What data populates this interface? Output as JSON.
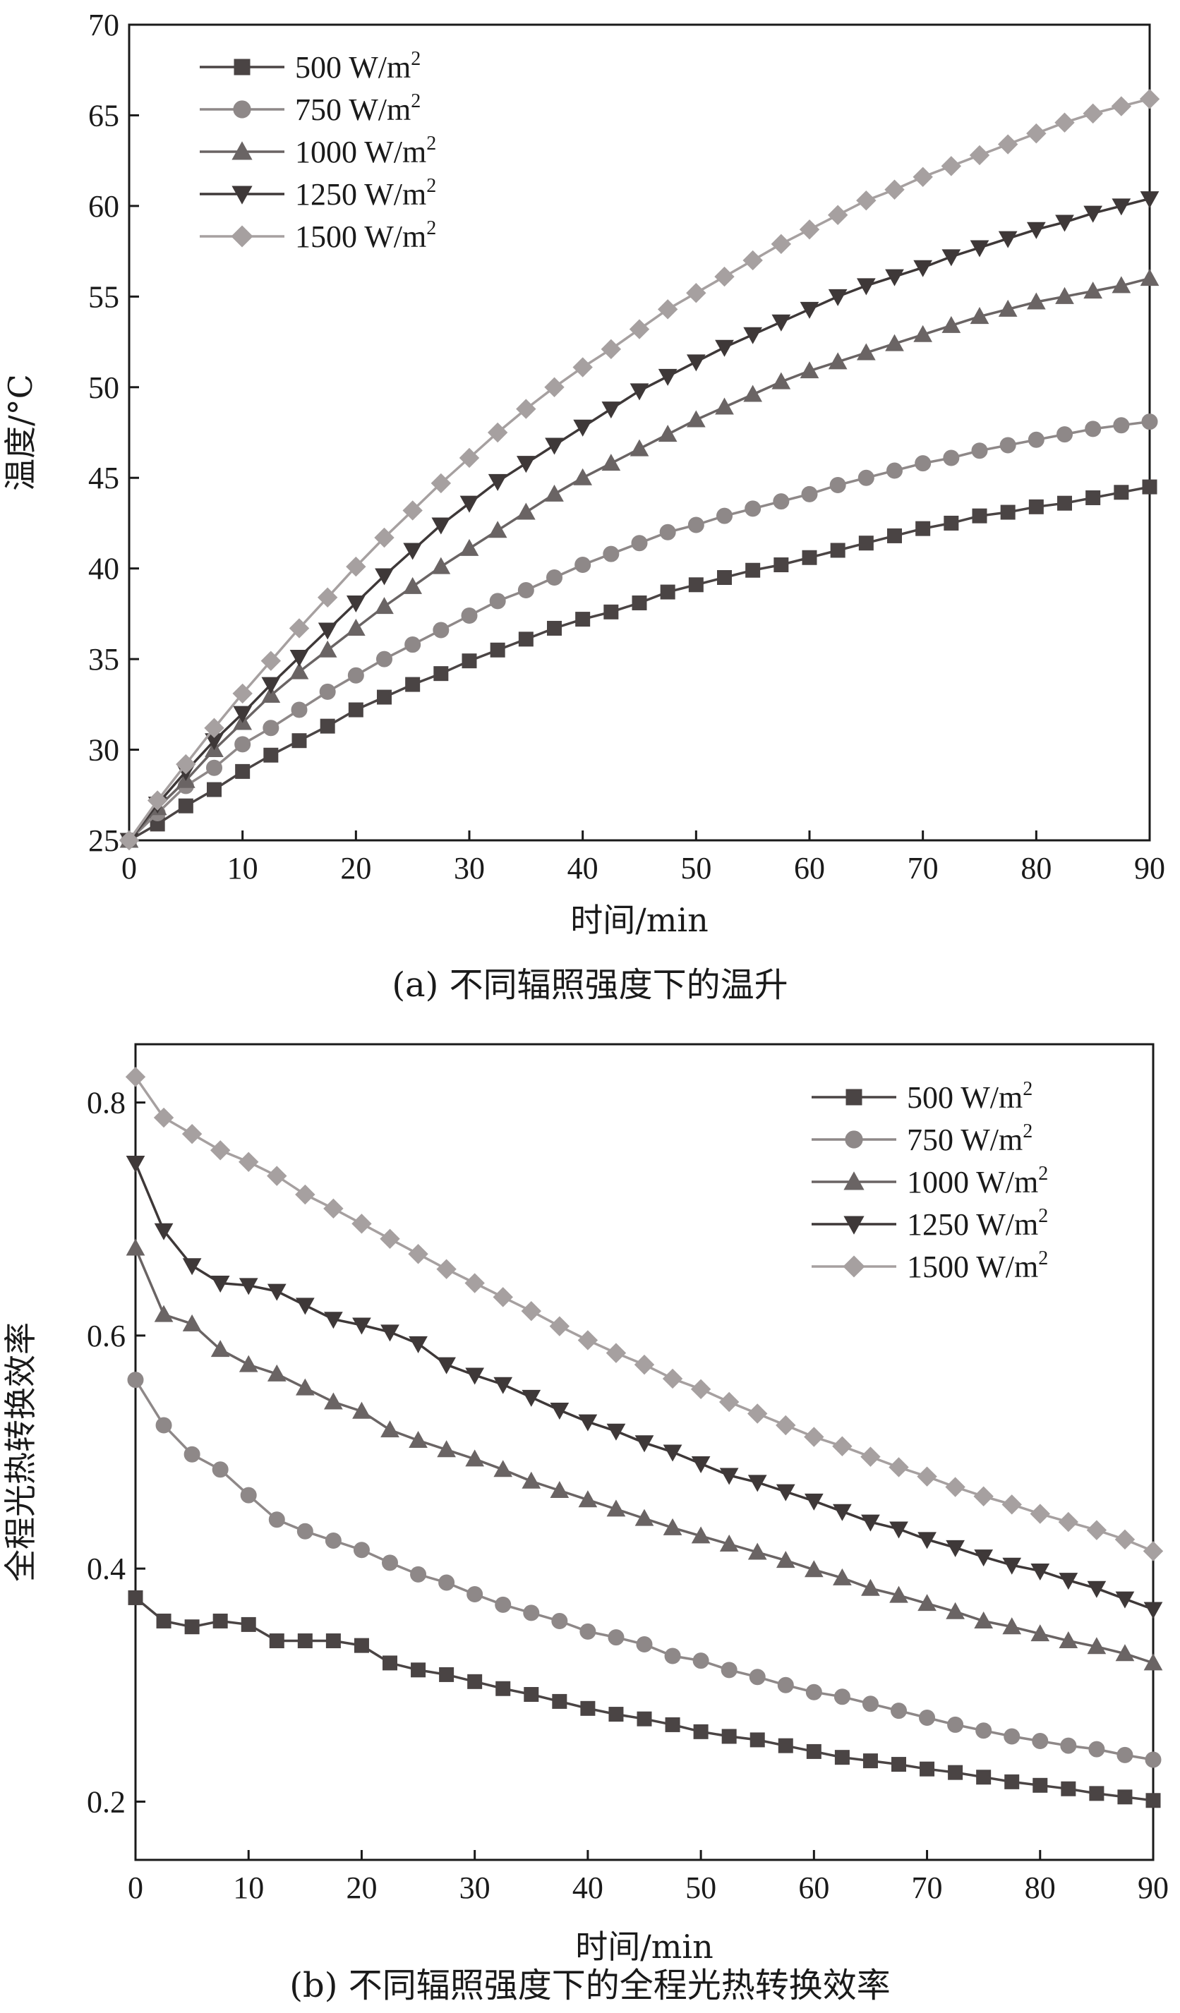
{
  "chart_data": [
    {
      "type": "line",
      "caption": "(a) 不同辐照强度下的温升",
      "xlabel": "时间/min",
      "ylabel": "温度/°C",
      "xlim": [
        0,
        90
      ],
      "ylim": [
        25,
        70
      ],
      "xticks": [
        0,
        10,
        20,
        30,
        40,
        50,
        60,
        70,
        80,
        90
      ],
      "yticks": [
        25,
        30,
        35,
        40,
        45,
        50,
        55,
        60,
        65,
        70
      ],
      "legend_position": "top-left",
      "x": [
        0,
        2.5,
        5,
        7.5,
        10,
        12.5,
        15,
        17.5,
        20,
        22.5,
        25,
        27.5,
        30,
        32.5,
        35,
        37.5,
        40,
        42.5,
        45,
        47.5,
        50,
        52.5,
        55,
        57.5,
        60,
        62.5,
        65,
        67.5,
        70,
        72.5,
        75,
        77.5,
        80,
        82.5,
        85,
        87.5,
        90
      ],
      "series": [
        {
          "name": "500 W/m",
          "sup": "2",
          "marker": "square",
          "color": "#4a4444",
          "values": [
            25.0,
            25.9,
            26.9,
            27.8,
            28.8,
            29.7,
            30.5,
            31.3,
            32.2,
            32.9,
            33.6,
            34.2,
            34.9,
            35.5,
            36.1,
            36.7,
            37.2,
            37.6,
            38.1,
            38.7,
            39.1,
            39.5,
            39.9,
            40.2,
            40.6,
            41.0,
            41.4,
            41.8,
            42.2,
            42.5,
            42.9,
            43.1,
            43.4,
            43.6,
            43.9,
            44.2,
            44.5
          ]
        },
        {
          "name": "750 W/m",
          "sup": "2",
          "marker": "circle",
          "color": "#8e8888",
          "values": [
            25.0,
            26.5,
            28.0,
            29.0,
            30.3,
            31.2,
            32.2,
            33.2,
            34.1,
            35.0,
            35.8,
            36.6,
            37.4,
            38.2,
            38.8,
            39.5,
            40.2,
            40.8,
            41.4,
            42.0,
            42.4,
            42.9,
            43.3,
            43.7,
            44.1,
            44.6,
            45.0,
            45.4,
            45.8,
            46.1,
            46.5,
            46.8,
            47.1,
            47.4,
            47.7,
            47.9,
            48.1
          ]
        },
        {
          "name": "1000 W/m",
          "sup": "2",
          "marker": "triangle-up",
          "color": "#6a6464",
          "values": [
            25.0,
            26.8,
            28.3,
            30.0,
            31.5,
            33.0,
            34.3,
            35.5,
            36.7,
            37.9,
            39.0,
            40.1,
            41.1,
            42.1,
            43.1,
            44.1,
            45.0,
            45.8,
            46.6,
            47.4,
            48.2,
            48.9,
            49.6,
            50.3,
            50.9,
            51.4,
            51.9,
            52.4,
            52.9,
            53.4,
            53.9,
            54.3,
            54.7,
            55.0,
            55.3,
            55.6,
            56.0
          ]
        },
        {
          "name": "1250 W/m",
          "sup": "2",
          "marker": "triangle-down",
          "color": "#3e3838",
          "values": [
            25.0,
            27.0,
            28.8,
            30.5,
            32.0,
            33.6,
            35.1,
            36.6,
            38.1,
            39.6,
            41.0,
            42.4,
            43.6,
            44.8,
            45.8,
            46.8,
            47.8,
            48.8,
            49.8,
            50.6,
            51.4,
            52.2,
            52.9,
            53.6,
            54.3,
            55.0,
            55.6,
            56.1,
            56.6,
            57.2,
            57.7,
            58.2,
            58.7,
            59.1,
            59.6,
            60.0,
            60.4
          ]
        },
        {
          "name": "1500 W/m",
          "sup": "2",
          "marker": "diamond",
          "color": "#a6a0a0",
          "values": [
            25.0,
            27.2,
            29.2,
            31.2,
            33.1,
            34.9,
            36.7,
            38.4,
            40.1,
            41.7,
            43.2,
            44.7,
            46.1,
            47.5,
            48.8,
            50.0,
            51.1,
            52.1,
            53.2,
            54.3,
            55.2,
            56.1,
            57.0,
            57.9,
            58.7,
            59.5,
            60.3,
            60.9,
            61.6,
            62.2,
            62.8,
            63.4,
            64.0,
            64.6,
            65.1,
            65.5,
            65.9
          ]
        }
      ]
    },
    {
      "type": "line",
      "caption": "(b) 不同辐照强度下的全程光热转换效率",
      "xlabel": "时间/min",
      "ylabel": "全程光热转换效率",
      "xlim": [
        0,
        90
      ],
      "ylim": [
        0.15,
        0.85
      ],
      "xticks": [
        0,
        10,
        20,
        30,
        40,
        50,
        60,
        70,
        80,
        90
      ],
      "yticks": [
        0.2,
        0.4,
        0.6,
        0.8
      ],
      "legend_position": "top-right",
      "x": [
        0,
        2.5,
        5,
        7.5,
        10,
        12.5,
        15,
        17.5,
        20,
        22.5,
        25,
        27.5,
        30,
        32.5,
        35,
        37.5,
        40,
        42.5,
        45,
        47.5,
        50,
        52.5,
        55,
        57.5,
        60,
        62.5,
        65,
        67.5,
        70,
        72.5,
        75,
        77.5,
        80,
        82.5,
        85,
        87.5,
        90
      ],
      "series": [
        {
          "name": "500 W/m",
          "sup": "2",
          "marker": "square",
          "color": "#4a4444",
          "values": [
            0.375,
            0.355,
            0.35,
            0.355,
            0.352,
            0.338,
            0.338,
            0.338,
            0.334,
            0.319,
            0.313,
            0.309,
            0.303,
            0.297,
            0.292,
            0.286,
            0.28,
            0.275,
            0.271,
            0.266,
            0.26,
            0.256,
            0.253,
            0.248,
            0.243,
            0.238,
            0.235,
            0.232,
            0.228,
            0.225,
            0.221,
            0.217,
            0.214,
            0.211,
            0.207,
            0.204,
            0.201
          ]
        },
        {
          "name": "750 W/m",
          "sup": "2",
          "marker": "circle",
          "color": "#8e8888",
          "values": [
            0.562,
            0.523,
            0.498,
            0.485,
            0.463,
            0.442,
            0.432,
            0.424,
            0.416,
            0.405,
            0.395,
            0.388,
            0.378,
            0.369,
            0.362,
            0.355,
            0.346,
            0.341,
            0.335,
            0.325,
            0.321,
            0.313,
            0.307,
            0.3,
            0.294,
            0.29,
            0.284,
            0.278,
            0.272,
            0.266,
            0.261,
            0.256,
            0.252,
            0.248,
            0.245,
            0.24,
            0.236
          ]
        },
        {
          "name": "1000 W/m",
          "sup": "2",
          "marker": "triangle-up",
          "color": "#6a6464",
          "values": [
            0.675,
            0.618,
            0.61,
            0.588,
            0.575,
            0.567,
            0.555,
            0.543,
            0.535,
            0.519,
            0.51,
            0.502,
            0.494,
            0.485,
            0.475,
            0.467,
            0.459,
            0.451,
            0.443,
            0.435,
            0.428,
            0.421,
            0.414,
            0.407,
            0.399,
            0.392,
            0.383,
            0.377,
            0.37,
            0.363,
            0.355,
            0.35,
            0.344,
            0.338,
            0.333,
            0.327,
            0.319
          ]
        },
        {
          "name": "1250 W/m",
          "sup": "2",
          "marker": "triangle-down",
          "color": "#3e3838",
          "values": [
            0.748,
            0.69,
            0.66,
            0.645,
            0.643,
            0.638,
            0.626,
            0.614,
            0.609,
            0.603,
            0.593,
            0.575,
            0.566,
            0.558,
            0.547,
            0.536,
            0.526,
            0.518,
            0.508,
            0.5,
            0.49,
            0.48,
            0.474,
            0.466,
            0.458,
            0.449,
            0.44,
            0.434,
            0.425,
            0.418,
            0.41,
            0.403,
            0.398,
            0.39,
            0.383,
            0.374,
            0.365
          ]
        },
        {
          "name": "1500 W/m",
          "sup": "2",
          "marker": "diamond",
          "color": "#a6a0a0",
          "values": [
            0.822,
            0.787,
            0.773,
            0.759,
            0.749,
            0.737,
            0.721,
            0.709,
            0.696,
            0.683,
            0.67,
            0.657,
            0.645,
            0.633,
            0.621,
            0.608,
            0.596,
            0.585,
            0.575,
            0.563,
            0.554,
            0.543,
            0.533,
            0.523,
            0.513,
            0.505,
            0.496,
            0.487,
            0.479,
            0.47,
            0.462,
            0.455,
            0.447,
            0.44,
            0.433,
            0.425,
            0.415
          ]
        }
      ]
    }
  ]
}
